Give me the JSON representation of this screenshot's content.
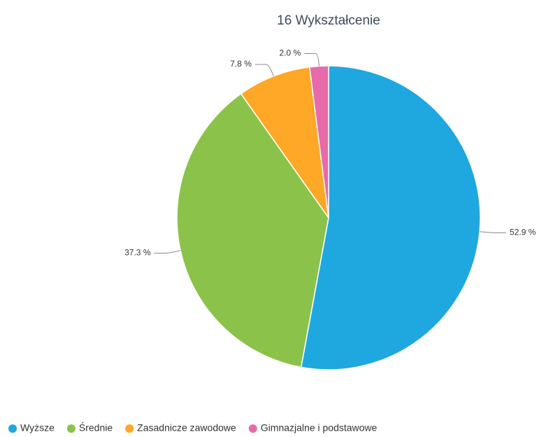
{
  "chart_data": {
    "type": "pie",
    "title": "16 Wykształcenie",
    "categories": [
      "Wyższe",
      "Średnie",
      "Zasadnicze zawodowe",
      "Gimnazjalne i podstawowe"
    ],
    "values": [
      52.9,
      37.3,
      7.8,
      2.0
    ],
    "value_labels": [
      "52.9 %",
      "37.3 %",
      "7.8 %",
      "2.0 %"
    ],
    "colors": [
      "#1fa8e0",
      "#8bc34a",
      "#ffa726",
      "#e86aa8"
    ],
    "legend": "bottom"
  }
}
